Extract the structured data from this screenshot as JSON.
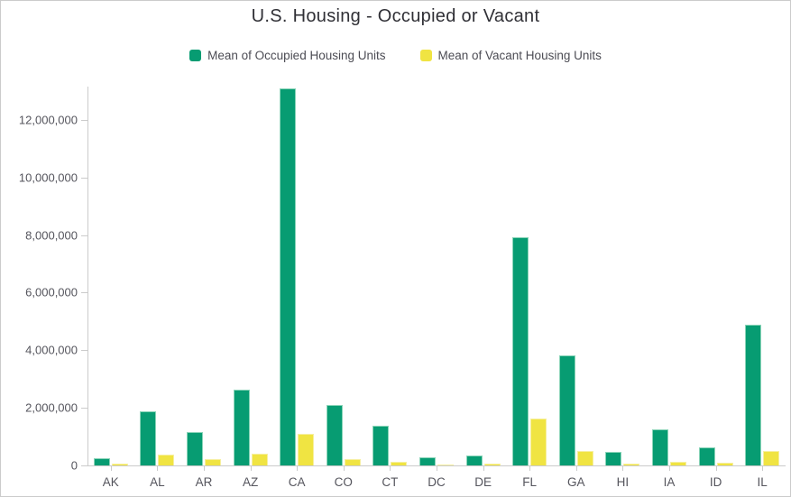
{
  "chart_data": {
    "type": "bar",
    "title": "U.S. Housing - Occupied or Vacant",
    "xlabel": "",
    "ylabel": "",
    "grid": false,
    "legend_position": "top",
    "ylim": [
      0,
      13160000
    ],
    "categories": [
      "AK",
      "AL",
      "AR",
      "AZ",
      "CA",
      "CO",
      "CT",
      "DC",
      "DE",
      "FL",
      "GA",
      "HI",
      "IA",
      "ID",
      "IL"
    ],
    "series": [
      {
        "name": "Mean of Occupied Housing Units",
        "color": "#079c72",
        "values": [
          250000,
          1880000,
          1160000,
          2630000,
          13100000,
          2100000,
          1380000,
          280000,
          345000,
          7930000,
          3820000,
          465000,
          1255000,
          630000,
          4890000
        ]
      },
      {
        "name": "Mean of Vacant Housing Units",
        "color": "#f0e442",
        "values": [
          55000,
          380000,
          215000,
          400000,
          1100000,
          220000,
          125000,
          30000,
          55000,
          1630000,
          500000,
          60000,
          125000,
          90000,
          500000
        ]
      }
    ],
    "yticks": [
      {
        "value": 0,
        "label": "0"
      },
      {
        "value": 2000000,
        "label": "2,000,000"
      },
      {
        "value": 4000000,
        "label": "4,000,000"
      },
      {
        "value": 6000000,
        "label": "6,000,000"
      },
      {
        "value": 8000000,
        "label": "8,000,000"
      },
      {
        "value": 10000000,
        "label": "10,000,000"
      },
      {
        "value": 12000000,
        "label": "12,000,000"
      }
    ]
  },
  "colors": {
    "occupied": "#079c72",
    "occupied_outline": "#8ad4b8",
    "vacant": "#f0e442",
    "vacant_outline": "#f6efa0",
    "axis": "#cbcbcb",
    "title_text": "#303036",
    "axis_text": "#55555d",
    "legend_text": "#4c4c54"
  }
}
